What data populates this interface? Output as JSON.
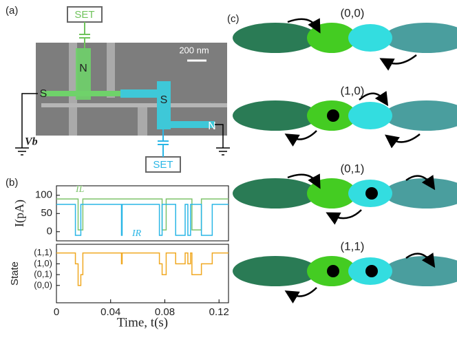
{
  "panel_a": {
    "label": "(a)",
    "set_top": "SET",
    "set_bottom": "SET",
    "scale_bar": "200 nm",
    "n_left": "N",
    "n_right": "N",
    "s_left": "S",
    "s_right": "S",
    "bias": "Vb"
  },
  "panel_b_label": "(b)",
  "chart_data": [
    {
      "type": "line",
      "ylabel": "I(pA)",
      "x": [
        0,
        0.014,
        0.014,
        0.016,
        0.016,
        0.018,
        0.018,
        0.0195,
        0.0195,
        0.048,
        0.048,
        0.0485,
        0.0485,
        0.076,
        0.076,
        0.078,
        0.078,
        0.081,
        0.081,
        0.088,
        0.088,
        0.095,
        0.095,
        0.097,
        0.097,
        0.099,
        0.099,
        0.1,
        0.1,
        0.107,
        0.107,
        0.115,
        0.115,
        0.127
      ],
      "series": [
        {
          "name": "IL",
          "color": "#7dc36b",
          "values": [
            90,
            90,
            90,
            90,
            5,
            5,
            5,
            5,
            90,
            90,
            90,
            90,
            90,
            90,
            90,
            90,
            5,
            5,
            90,
            90,
            90,
            90,
            90,
            90,
            90,
            90,
            90,
            90,
            5,
            5,
            90,
            90,
            90,
            90
          ]
        },
        {
          "name": "IR",
          "color": "#29b6e6",
          "values": [
            75,
            75,
            -10,
            -10,
            -10,
            -10,
            75,
            75,
            75,
            75,
            -10,
            -10,
            75,
            75,
            -10,
            -10,
            75,
            75,
            75,
            75,
            -10,
            -10,
            75,
            75,
            -10,
            -10,
            75,
            75,
            75,
            75,
            -10,
            -10,
            75,
            75
          ]
        }
      ],
      "xlim": [
        0,
        0.127
      ],
      "ylim": [
        -25,
        126
      ],
      "yticks": [
        0,
        50,
        100
      ]
    },
    {
      "type": "line",
      "ylabel": "State",
      "xlabel": "Time, t(s)",
      "x": [
        0,
        0.014,
        0.014,
        0.016,
        0.016,
        0.018,
        0.018,
        0.0195,
        0.0195,
        0.048,
        0.048,
        0.0485,
        0.0485,
        0.076,
        0.076,
        0.078,
        0.078,
        0.081,
        0.081,
        0.088,
        0.088,
        0.095,
        0.095,
        0.097,
        0.097,
        0.099,
        0.099,
        0.1,
        0.1,
        0.107,
        0.107,
        0.115,
        0.115,
        0.127
      ],
      "series": [
        {
          "name": "State",
          "color": "#f0a820",
          "values": [
            3,
            3,
            2,
            2,
            0,
            0,
            1,
            1,
            3,
            3,
            2,
            2,
            3,
            3,
            2,
            2,
            1,
            1,
            3,
            3,
            2,
            2,
            3,
            3,
            2,
            2,
            3,
            3,
            1,
            1,
            2,
            2,
            3,
            3
          ]
        }
      ],
      "xlim": [
        0,
        0.127
      ],
      "ylim": [
        -1.6,
        3.8
      ],
      "xticks": [
        0,
        0.04,
        0.08,
        0.12
      ],
      "yticks": [
        {
          "value": 0,
          "label": "(0,0)"
        },
        {
          "value": 1,
          "label": "(0,1)"
        },
        {
          "value": 2,
          "label": "(1,0)"
        },
        {
          "value": 3,
          "label": "(1,1)"
        }
      ]
    }
  ],
  "panel_c": {
    "label": "(c)",
    "rows": [
      {
        "label": "(0,0)"
      },
      {
        "label": "(1,0)"
      },
      {
        "label": "(0,1)"
      },
      {
        "label": "(1,1)"
      }
    ]
  }
}
